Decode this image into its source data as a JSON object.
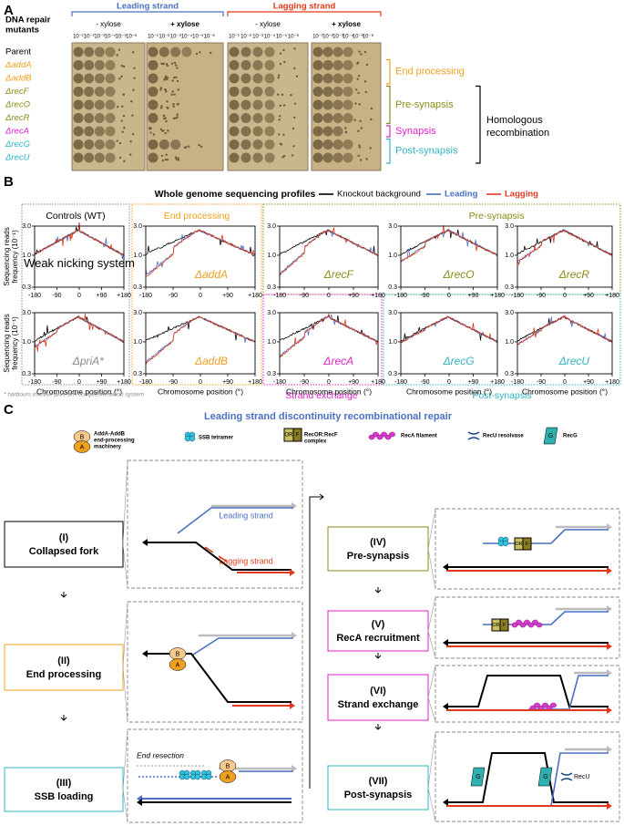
{
  "panel_a": {
    "label": "A",
    "row_header": [
      "DNA repair",
      "mutants"
    ],
    "strands": [
      {
        "name": "Leading strand",
        "conditions": [
          "- xylose",
          "+ xylose"
        ]
      },
      {
        "name": "Lagging strand",
        "conditions": [
          "- xylose",
          "+ xylose"
        ]
      }
    ],
    "dilutions": [
      "10⁻¹",
      "10⁻²",
      "10⁻³",
      "10⁻⁴",
      "10⁻⁵",
      "10⁻⁶"
    ],
    "mutants": [
      "Parent",
      "ΔaddA",
      "ΔaddB",
      "ΔrecF",
      "ΔrecO",
      "ΔrecR",
      "ΔrecA",
      "ΔrecG",
      "ΔrecU"
    ],
    "groups": [
      "End processing",
      "Pre-synapsis",
      "Synapsis",
      "Post-synapsis"
    ],
    "pathway": [
      "Homologous",
      "recombination"
    ]
  },
  "panel_b": {
    "label": "B",
    "title": "Whole genome sequencing profiles",
    "legend": [
      {
        "name": "Knockout background",
        "color": "#000000"
      },
      {
        "name": "Leading",
        "color": "#4a6fc0"
      },
      {
        "name": "Lagging",
        "color": "#e0391c"
      }
    ],
    "y_axis_label": [
      "Sequencing reads",
      "frequency (10⁻¹)"
    ],
    "x_axis_label": "Chromosome position (°)",
    "log_y": true,
    "ylim": [
      0.3,
      3
    ],
    "yticks": [
      {
        "value": 3,
        "label": "3.0"
      },
      {
        "value": 1,
        "label": "1.0"
      },
      {
        "value": 0.3,
        "label": "0.3"
      }
    ],
    "xlim": [
      -180,
      180
    ],
    "xticks": [
      -180,
      -90,
      0,
      {
        "value": 90,
        "label": "+90"
      },
      {
        "value": 180,
        "label": "+180"
      }
    ],
    "groups": [
      "Controls (WT)",
      "End processing",
      "Pre-synapsis",
      "Strand exchange",
      "Post-synapsis"
    ],
    "plots": [
      "Weak nicking system",
      "ΔaddA",
      "ΔrecF",
      "ΔrecO",
      "ΔrecR",
      "ΔpriA*",
      "ΔaddB",
      "ΔrecA",
      "ΔrecG",
      "ΔrecU"
    ],
    "footnote": "* harbours inactive priA-sirA complementation system"
  },
  "panel_c": {
    "label": "C",
    "title": "Leading strand discontinuity recombinational repair",
    "legend": [
      [
        "AddA-AddB",
        "end-processing",
        "machinery"
      ],
      [
        "SSB tetramer"
      ],
      [
        "RecOR:RecF",
        "complex"
      ],
      [
        "RecA filament"
      ],
      [
        "RecU resolvase"
      ],
      [
        "RecG"
      ]
    ],
    "steps": [
      {
        "numeral": "(I)",
        "name": "Collapsed fork"
      },
      {
        "numeral": "(II)",
        "name": "End processing"
      },
      {
        "numeral": "(III)",
        "name": "SSB loading"
      },
      {
        "numeral": "(IV)",
        "name": "Pre-synapsis"
      },
      {
        "numeral": "(V)",
        "name": "RecA recruitment"
      },
      {
        "numeral": "(VI)",
        "name": "Strand exchange"
      },
      {
        "numeral": "(VII)",
        "name": "Post-synapsis"
      }
    ],
    "diagram_labels": {
      "leading": "Leading strand",
      "lagging": "Lagging strand",
      "resection": "End resection",
      "recu": "RecU"
    },
    "icons": {
      "addb": "B",
      "adda": "A",
      "recor": "OR",
      "recf": "F",
      "recg": "G"
    }
  }
}
